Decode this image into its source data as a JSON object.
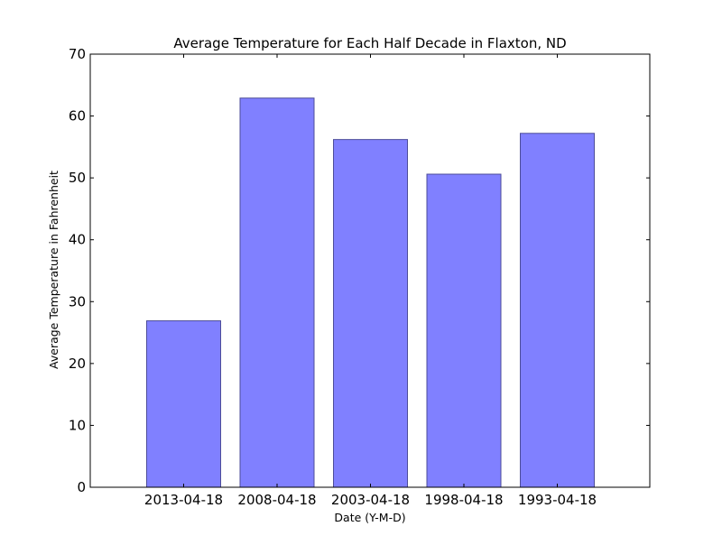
{
  "chart_data": {
    "type": "bar",
    "title": "Average Temperature for Each Half Decade in Flaxton, ND",
    "xlabel": "Date (Y-M-D)",
    "ylabel": "Average Temperature in Fahrenheit",
    "categories": [
      "2013-04-18",
      "2008-04-18",
      "2003-04-18",
      "1998-04-18",
      "1993-04-18"
    ],
    "values": [
      26.9,
      62.9,
      56.2,
      50.6,
      57.2
    ],
    "ylim": [
      0,
      70
    ],
    "yticks": [
      0,
      10,
      20,
      30,
      40,
      50,
      60,
      70
    ],
    "grid": false,
    "legend": "none",
    "bar_color": "#8080ff",
    "bar_edge_color": "#4d4d99",
    "axis_color": "#000000"
  }
}
